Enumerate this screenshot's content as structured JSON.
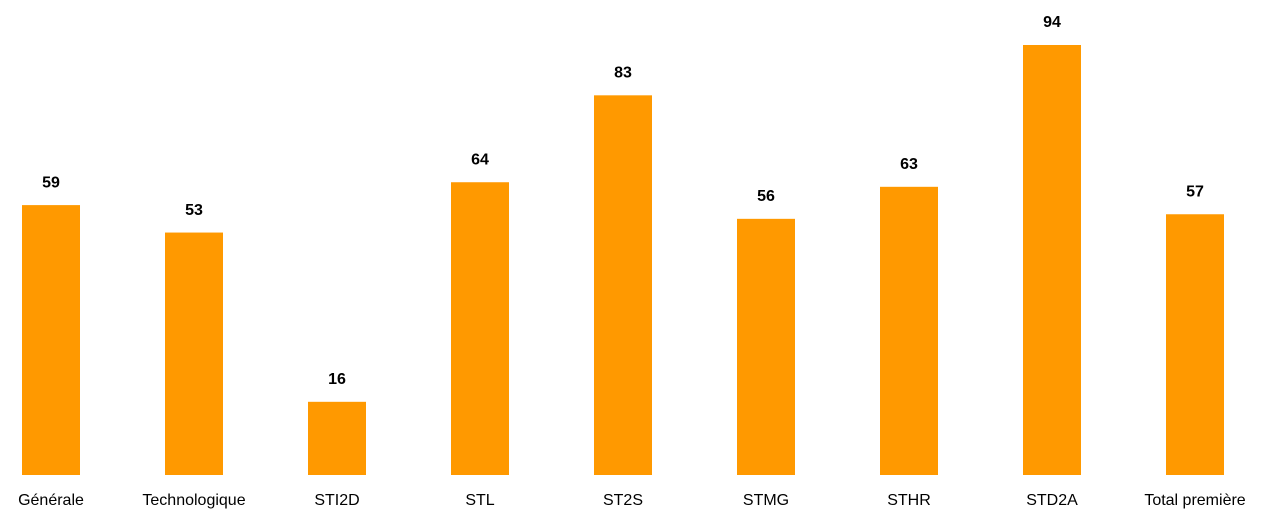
{
  "chart_data": {
    "type": "bar",
    "categories": [
      "Générale",
      "Technologique",
      "STI2D",
      "STL",
      "ST2S",
      "STMG",
      "STHR",
      "STD2A",
      "Total première"
    ],
    "values": [
      59,
      53,
      16,
      64,
      83,
      56,
      63,
      94,
      57
    ],
    "color": "#ff9900"
  }
}
